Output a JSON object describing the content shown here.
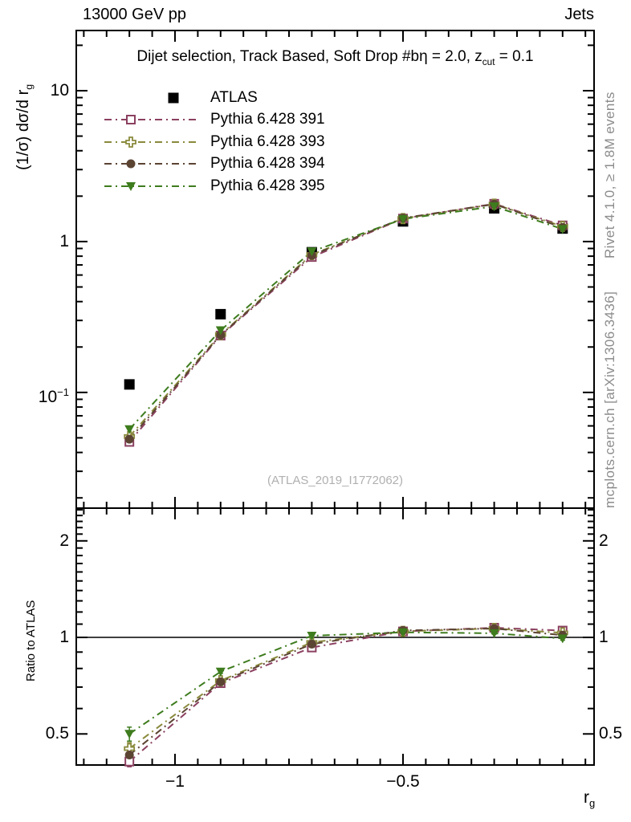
{
  "header": {
    "left": "13000 GeV pp",
    "right": "Jets"
  },
  "panel_title": {
    "t1": "Dijet selection, Track Based, Soft Drop #bη = 2.0, z",
    "sub": "cut",
    "t2": " = 0.1"
  },
  "watermark": "(ATLAS_2019_I1772062)",
  "vertical_right": {
    "top": "Rivet 4.1.0, ≥ 1.8M events",
    "bottom": "mcplots.cern.ch [arXiv:1306.3436]"
  },
  "axes": {
    "main_y": {
      "label_main": "(1/σ) dσ/d r",
      "label_sub": "g",
      "ticks": [
        {
          "v": 10,
          "t": "10"
        },
        {
          "v": 1,
          "t": "1"
        },
        {
          "v": 0.1,
          "t": "10",
          "sup": "−1"
        }
      ]
    },
    "ratio_y": {
      "label": "Ratio to ATLAS",
      "ticks": [
        {
          "v": 2,
          "t": "2"
        },
        {
          "v": 1,
          "t": "1"
        },
        {
          "v": 0.5,
          "t": "0.5"
        }
      ]
    },
    "x": {
      "label_main": "r",
      "label_sub": "g",
      "ticks": [
        {
          "v": -1,
          "t": "−1"
        },
        {
          "v": -0.5,
          "t": "−0.5"
        }
      ]
    }
  },
  "chart_data": {
    "type": "line",
    "title": "Dijet selection, Track Based, Soft Drop #bη = 2.0, z_cut = 0.1",
    "xlabel": "r_g",
    "ylabel": "(1/σ) dσ/d r_g",
    "ratio_ylabel": "Ratio to ATLAS",
    "xscale_note": "x axis is log10(r_g)",
    "yscale": "log",
    "xlim": [
      -1.2165,
      -0.081
    ],
    "main_ylim": [
      0.0171,
      25.06
    ],
    "ratio_ylim": [
      0.4,
      2.53
    ],
    "x": [
      -1.1,
      -0.9,
      -0.7,
      -0.5,
      -0.3,
      -0.15
    ],
    "series": [
      {
        "name": "ATLAS",
        "marker": "filled-square",
        "color": "#000000",
        "line": false,
        "in_ratio": false,
        "values": [
          0.113,
          0.33,
          0.85,
          1.36,
          1.66,
          1.22
        ],
        "ratio": [
          1,
          1,
          1,
          1,
          1,
          1
        ]
      },
      {
        "name": "Pythia 6.428 391",
        "marker": "open-square",
        "color": "#8b4060",
        "line": true,
        "in_ratio": true,
        "values": [
          0.047,
          0.238,
          0.79,
          1.42,
          1.78,
          1.28
        ],
        "ratio": [
          0.41,
          0.72,
          0.93,
          1.044,
          1.072,
          1.05
        ],
        "ratio_err": [
          0.015,
          0.008,
          0.006,
          0.005,
          0.007,
          0.012
        ]
      },
      {
        "name": "Pythia 6.428 393",
        "marker": "open-cross",
        "color": "#8a8a3d",
        "line": true,
        "in_ratio": true,
        "values": [
          0.051,
          0.242,
          0.82,
          1.42,
          1.77,
          1.26
        ],
        "ratio": [
          0.45,
          0.733,
          0.965,
          1.044,
          1.066,
          1.033
        ],
        "ratio_err": [
          0.02,
          0.008,
          0.006,
          0.005,
          0.007,
          0.012
        ]
      },
      {
        "name": "Pythia 6.428 394",
        "marker": "filled-circle",
        "color": "#5c4433",
        "line": true,
        "in_ratio": true,
        "values": [
          0.049,
          0.24,
          0.81,
          1.43,
          1.77,
          1.24
        ],
        "ratio": [
          0.43,
          0.727,
          0.953,
          1.051,
          1.066,
          1.016
        ],
        "ratio_err": [
          0.015,
          0.008,
          0.006,
          0.005,
          0.007,
          0.012
        ]
      },
      {
        "name": "Pythia 6.428 395",
        "marker": "filled-triangle-down",
        "color": "#3e7c1e",
        "line": true,
        "in_ratio": true,
        "values": [
          0.057,
          0.258,
          0.86,
          1.41,
          1.71,
          1.21
        ],
        "ratio": [
          0.5,
          0.782,
          1.012,
          1.037,
          1.03,
          0.992
        ],
        "ratio_err": [
          0.025,
          0.01,
          0.007,
          0.005,
          0.007,
          0.012
        ]
      }
    ],
    "legend_position": "top-left",
    "grid": false
  }
}
